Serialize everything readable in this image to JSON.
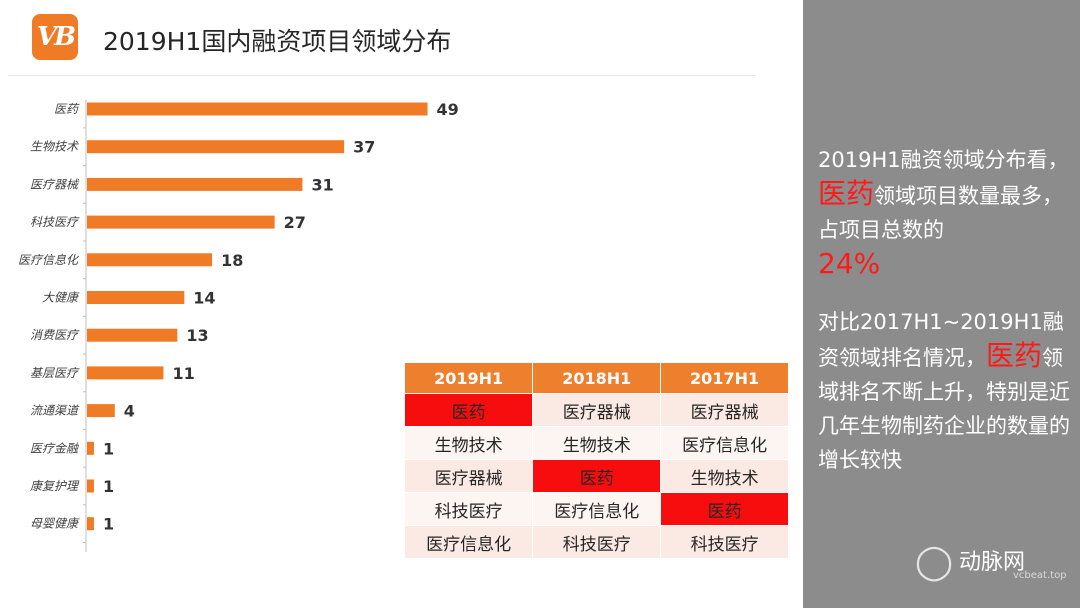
{
  "header": {
    "logo_text": "VB",
    "title": "2019H1国内融资项目领域分布"
  },
  "colors": {
    "bar": "#f07b26",
    "table_header": "#ee7f2d",
    "highlight": "#f70d0d",
    "sidebar": "#8c8c8c",
    "accent_text": "#ff1a1a"
  },
  "chart_data": {
    "type": "bar",
    "orientation": "horizontal",
    "categories": [
      "医药",
      "生物技术",
      "医疗器械",
      "科技医疗",
      "医疗信息化",
      "大健康",
      "消费医疗",
      "基层医疗",
      "流通渠道",
      "医疗金融",
      "康复护理",
      "母婴健康"
    ],
    "values": [
      49,
      37,
      31,
      27,
      18,
      14,
      13,
      11,
      4,
      1,
      1,
      1
    ],
    "title": "",
    "xlabel": "",
    "ylabel": "",
    "grid": false,
    "legend": false
  },
  "ranking_table": {
    "headers": [
      "2019H1",
      "2018H1",
      "2017H1"
    ],
    "rows": [
      [
        "医药",
        "医疗器械",
        "医疗器械"
      ],
      [
        "生物技术",
        "生物技术",
        "医疗信息化"
      ],
      [
        "医疗器械",
        "医药",
        "生物技术"
      ],
      [
        "科技医疗",
        "医疗信息化",
        "医药"
      ],
      [
        "医疗信息化",
        "科技医疗",
        "科技医疗"
      ]
    ]
  },
  "sidebar": {
    "p1_a": "2019H1融资领域分布看，",
    "p1_highlight": "医药",
    "p1_b": "领域项目数量最多，占项目总数的",
    "p1_percent": "24%",
    "p2_a": "对比2017H1~2019H1融资领域排名情况，",
    "p2_highlight": "医药",
    "p2_b": "领域排名不断上升，特别是近几年生物制药企业的数量的增长较快"
  },
  "watermark": {
    "name": "动脉网",
    "url": "vcbeat.top",
    "icon": "wechat-icon"
  }
}
